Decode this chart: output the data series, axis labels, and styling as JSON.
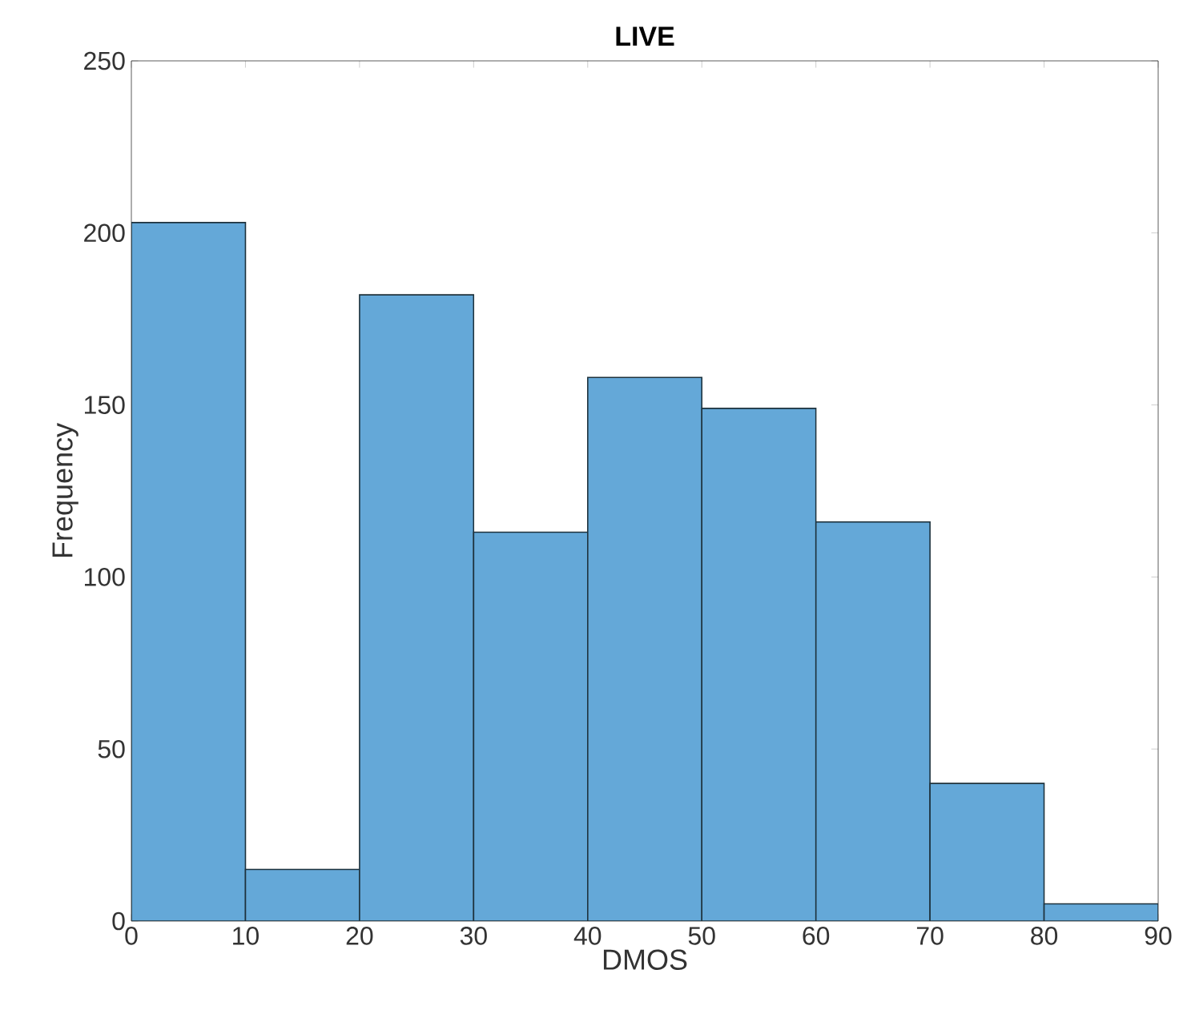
{
  "chart_data": {
    "type": "histogram",
    "title": "LIVE",
    "xlabel": "DMOS",
    "ylabel": "Frequency",
    "bins": [
      0,
      10,
      20,
      30,
      40,
      50,
      60,
      70,
      80,
      90
    ],
    "values": [
      203,
      15,
      182,
      113,
      158,
      149,
      116,
      40,
      5
    ],
    "color": "#64a8d8",
    "xlim": [
      0,
      90
    ],
    "xticks": [
      0,
      10,
      20,
      30,
      40,
      50,
      60,
      70,
      80,
      90
    ],
    "ylim": [
      0,
      250
    ],
    "yticks": [
      0,
      50,
      100,
      150,
      200,
      250
    ]
  }
}
